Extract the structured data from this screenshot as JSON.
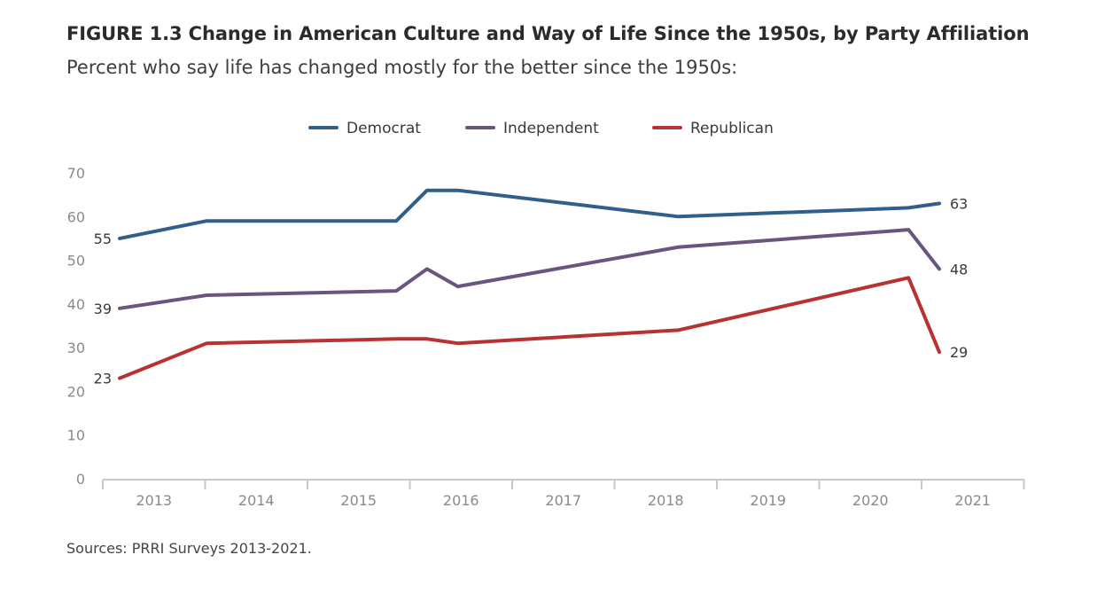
{
  "header": {
    "title": "FIGURE 1.3 Change in American Culture and Way of Life Since the 1950s, by Party Affiliation",
    "subtitle": "Percent who say life has changed mostly for the better since the 1950s:"
  },
  "footer": {
    "source": "Sources: PRRI Surveys 2013-2021."
  },
  "chart_data": {
    "type": "line",
    "title": "FIGURE 1.3 Change in American Culture and Way of Life Since the 1950s, by Party Affiliation",
    "subtitle": "Percent who say life has changed mostly for the better since the 1950s:",
    "xlabel": "",
    "ylabel": "",
    "ylim": [
      0,
      70
    ],
    "yticks": [
      "0",
      "10",
      "20",
      "30",
      "40",
      "50",
      "60",
      "70"
    ],
    "xticks": [
      "2013",
      "2014",
      "2015",
      "2016",
      "2017",
      "2018",
      "2019",
      "2020",
      "2021"
    ],
    "grid": false,
    "legend": "top-center",
    "series": [
      {
        "name": "Democrat",
        "color": "#2f5f8a",
        "x": [
          2013.0,
          2013.85,
          2015.7,
          2016.0,
          2016.3,
          2018.45,
          2020.7,
          2021.0
        ],
        "y": [
          55,
          59,
          59,
          66,
          66,
          60,
          62,
          63
        ],
        "start_label": "55",
        "end_label": "63"
      },
      {
        "name": "Independent",
        "color": "#6a5580",
        "x": [
          2013.0,
          2013.85,
          2015.7,
          2016.0,
          2016.3,
          2018.45,
          2020.7,
          2021.0
        ],
        "y": [
          39,
          42,
          43,
          48,
          44,
          53,
          57,
          48
        ],
        "start_label": "39",
        "end_label": "48"
      },
      {
        "name": "Republican",
        "color": "#b73232",
        "x": [
          2013.0,
          2013.85,
          2015.7,
          2016.0,
          2016.3,
          2018.45,
          2020.7,
          2021.0
        ],
        "y": [
          23,
          31,
          32,
          32,
          31,
          34,
          46,
          29
        ],
        "start_label": "23",
        "end_label": "29"
      }
    ]
  }
}
